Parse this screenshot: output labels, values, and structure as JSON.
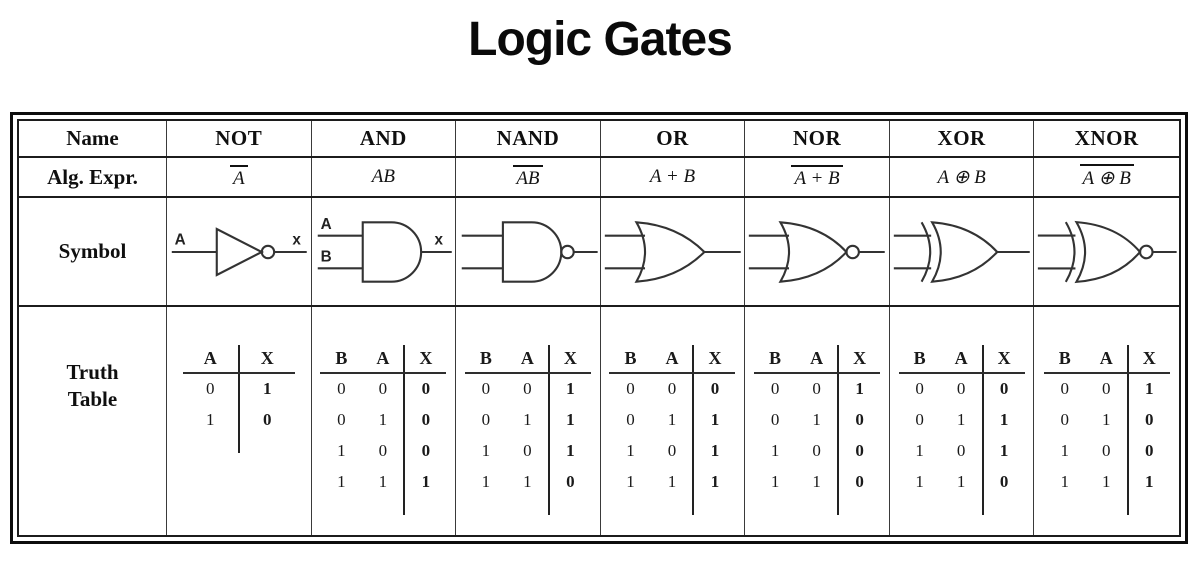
{
  "title": "Logic Gates",
  "row_headers": {
    "name": "Name",
    "alg_expr": "Alg. Expr.",
    "symbol": "Symbol",
    "truth_table_line1": "Truth",
    "truth_table_line2": "Table"
  },
  "colors": {
    "ink": "#111111",
    "table_line": "#1c1c1c",
    "gate_stroke": "#333333",
    "background": "#ffffff"
  },
  "gates": [
    {
      "name": "NOT",
      "expr": {
        "text": "A",
        "overline": true
      },
      "symbol": {
        "type": "not",
        "input_labels": [
          "A"
        ],
        "output_label": "x"
      },
      "truth": {
        "headers": [
          "A",
          "X"
        ],
        "rows": [
          [
            "0",
            "1"
          ],
          [
            "1",
            "0"
          ]
        ]
      }
    },
    {
      "name": "AND",
      "expr": {
        "text": "AB",
        "overline": false
      },
      "symbol": {
        "type": "and",
        "input_labels": [
          "A",
          "B"
        ],
        "output_label": "x"
      },
      "truth": {
        "headers": [
          "B",
          "A",
          "X"
        ],
        "rows": [
          [
            "0",
            "0",
            "0"
          ],
          [
            "0",
            "1",
            "0"
          ],
          [
            "1",
            "0",
            "0"
          ],
          [
            "1",
            "1",
            "1"
          ]
        ]
      }
    },
    {
      "name": "NAND",
      "expr": {
        "text": "AB",
        "overline": true
      },
      "symbol": {
        "type": "nand",
        "input_labels": [],
        "output_label": ""
      },
      "truth": {
        "headers": [
          "B",
          "A",
          "X"
        ],
        "rows": [
          [
            "0",
            "0",
            "1"
          ],
          [
            "0",
            "1",
            "1"
          ],
          [
            "1",
            "0",
            "1"
          ],
          [
            "1",
            "1",
            "0"
          ]
        ]
      }
    },
    {
      "name": "OR",
      "expr": {
        "text": "A + B",
        "overline": false
      },
      "symbol": {
        "type": "or",
        "input_labels": [],
        "output_label": ""
      },
      "truth": {
        "headers": [
          "B",
          "A",
          "X"
        ],
        "rows": [
          [
            "0",
            "0",
            "0"
          ],
          [
            "0",
            "1",
            "1"
          ],
          [
            "1",
            "0",
            "1"
          ],
          [
            "1",
            "1",
            "1"
          ]
        ]
      }
    },
    {
      "name": "NOR",
      "expr": {
        "text": "A + B",
        "overline": true
      },
      "symbol": {
        "type": "nor",
        "input_labels": [],
        "output_label": ""
      },
      "truth": {
        "headers": [
          "B",
          "A",
          "X"
        ],
        "rows": [
          [
            "0",
            "0",
            "1"
          ],
          [
            "0",
            "1",
            "0"
          ],
          [
            "1",
            "0",
            "0"
          ],
          [
            "1",
            "1",
            "0"
          ]
        ]
      }
    },
    {
      "name": "XOR",
      "expr": {
        "text": "A ⊕ B",
        "overline": false
      },
      "symbol": {
        "type": "xor",
        "input_labels": [],
        "output_label": ""
      },
      "truth": {
        "headers": [
          "B",
          "A",
          "X"
        ],
        "rows": [
          [
            "0",
            "0",
            "0"
          ],
          [
            "0",
            "1",
            "1"
          ],
          [
            "1",
            "0",
            "1"
          ],
          [
            "1",
            "1",
            "0"
          ]
        ]
      }
    },
    {
      "name": "XNOR",
      "expr": {
        "text": "A ⊕ B",
        "overline": true
      },
      "symbol": {
        "type": "xnor",
        "input_labels": [],
        "output_label": ""
      },
      "truth": {
        "headers": [
          "B",
          "A",
          "X"
        ],
        "rows": [
          [
            "0",
            "0",
            "1"
          ],
          [
            "0",
            "1",
            "0"
          ],
          [
            "1",
            "0",
            "0"
          ],
          [
            "1",
            "1",
            "1"
          ]
        ]
      }
    }
  ]
}
